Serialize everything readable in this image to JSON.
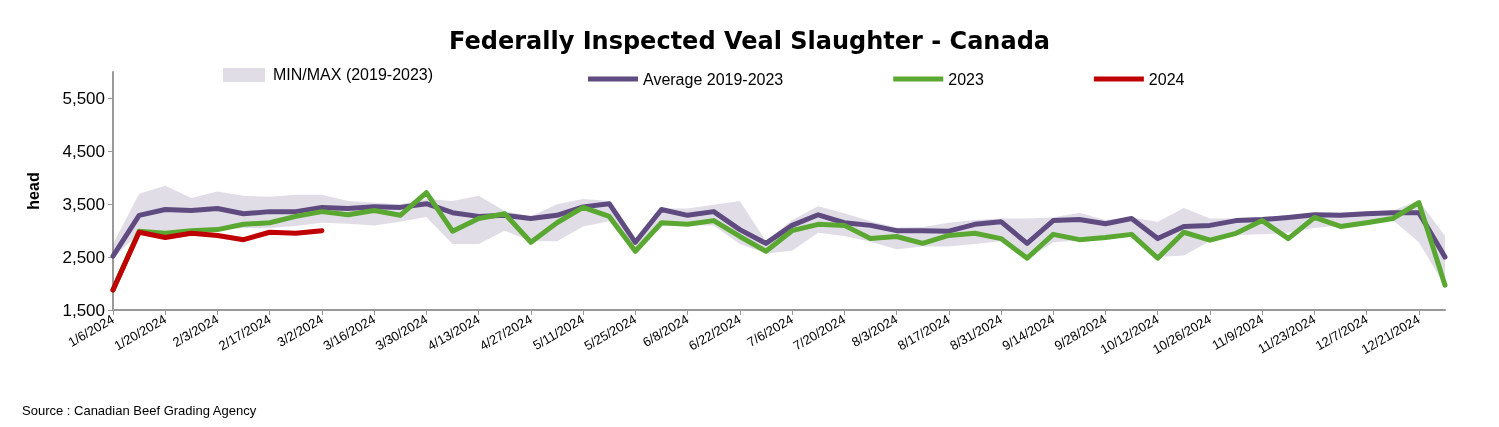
{
  "chart_data": {
    "type": "line",
    "title": "Federally Inspected Veal Slaughter - Canada",
    "ylabel": "head",
    "annotations": [
      "Source : Canadian Beef Grading Agency",
      "MIN/MAX (2019-2023)"
    ],
    "categories": [
      "1/6/2024",
      null,
      "1/20/2024",
      null,
      "2/3/2024",
      null,
      "2/17/2024",
      null,
      "3/2/2024",
      null,
      "3/16/2024",
      null,
      "3/30/2024",
      null,
      "4/13/2024",
      null,
      "4/27/2024",
      null,
      "5/11/2024",
      null,
      "5/25/2024",
      null,
      "6/8/2024",
      null,
      "6/22/2024",
      null,
      "7/6/2024",
      null,
      "7/20/2024",
      null,
      "8/3/2024",
      null,
      "8/17/2024",
      null,
      "8/31/2024",
      null,
      "9/14/2024",
      null,
      "9/28/2024",
      null,
      "10/12/2024",
      null,
      "10/26/2024",
      null,
      "11/9/2024",
      null,
      "11/23/2024",
      null,
      "12/7/2024",
      null,
      "12/21/2024",
      null
    ],
    "series": [
      {
        "name": "Average 2019-2023",
        "color": "#5f4b80",
        "lower": [
          2480,
          2950,
          2900,
          2980,
          3020,
          3050,
          3050,
          3090,
          3150,
          3130,
          3100,
          3170,
          3260,
          2750,
          2750,
          3000,
          2800,
          2800,
          3080,
          3180,
          2580,
          3090,
          3100,
          3100,
          2750,
          2570,
          2620,
          2960,
          2900,
          2790,
          2650,
          2700,
          2700,
          2750,
          2800,
          2460,
          2780,
          2820,
          2840,
          2900,
          2500,
          2530,
          2800,
          2920,
          2930,
          2960,
          3050,
          3100,
          3150,
          3200,
          2780,
          1950
        ],
        "upper": [
          2750,
          3700,
          3850,
          3620,
          3740,
          3660,
          3640,
          3680,
          3680,
          3560,
          3530,
          3500,
          3600,
          3560,
          3660,
          3370,
          3270,
          3500,
          3600,
          3560,
          2830,
          3420,
          3420,
          3490,
          3560,
          2800,
          3200,
          3460,
          3330,
          3180,
          3060,
          3070,
          3150,
          3200,
          3230,
          3230,
          3250,
          3340,
          3200,
          3250,
          3170,
          3430,
          3230,
          3230,
          3260,
          3280,
          3340,
          3340,
          3370,
          3380,
          3570,
          2900
        ],
        "values": [
          2520,
          3290,
          3400,
          3380,
          3420,
          3320,
          3360,
          3360,
          3440,
          3420,
          3450,
          3440,
          3510,
          3340,
          3270,
          3290,
          3230,
          3290,
          3450,
          3510,
          2780,
          3400,
          3290,
          3360,
          3020,
          2760,
          3100,
          3300,
          3150,
          3100,
          3000,
          3000,
          2990,
          3120,
          3170,
          2760,
          3190,
          3210,
          3130,
          3230,
          2850,
          3080,
          3100,
          3190,
          3210,
          3250,
          3300,
          3290,
          3320,
          3340,
          3340,
          2500
        ]
      },
      {
        "name": "2023",
        "color": "#5aa832",
        "values": [
          1880,
          2990,
          2950,
          3000,
          3020,
          3120,
          3150,
          3270,
          3360,
          3300,
          3380,
          3290,
          3720,
          2990,
          3230,
          3320,
          2780,
          3150,
          3440,
          3270,
          2610,
          3150,
          3120,
          3190,
          2890,
          2610,
          3000,
          3120,
          3100,
          2850,
          2890,
          2760,
          2910,
          2950,
          2850,
          2480,
          2930,
          2830,
          2870,
          2930,
          2480,
          2970,
          2820,
          2950,
          3190,
          2850,
          3250,
          3080,
          3150,
          3230,
          3530,
          1970
        ]
      },
      {
        "name": "2024",
        "color": "#c00000",
        "values": [
          1880,
          2970,
          2870,
          2950,
          2910,
          2830,
          2970,
          2950,
          3000,
          null,
          null,
          null,
          null,
          null,
          null,
          null,
          null,
          null,
          null,
          null,
          null,
          null,
          null,
          null,
          null,
          null,
          null,
          null,
          null,
          null,
          null,
          null,
          null,
          null,
          null,
          null,
          null,
          null,
          null,
          null,
          null,
          null,
          null,
          null,
          null,
          null,
          null,
          null,
          null,
          null,
          null,
          null
        ]
      }
    ],
    "ylim": [
      1500,
      6000
    ],
    "yticks": [
      {
        "value": 1500,
        "label": "1,500"
      },
      {
        "value": 2500,
        "label": "2,500"
      },
      {
        "value": 3500,
        "label": "3,500"
      },
      {
        "value": 4500,
        "label": "4,500"
      },
      {
        "value": 5500,
        "label": "5,500"
      }
    ],
    "grid": false,
    "legend": "top",
    "marker": "none",
    "line_style": "solid"
  }
}
